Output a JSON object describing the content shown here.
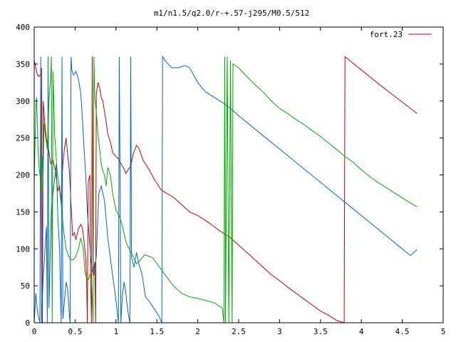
{
  "chart_data": {
    "type": "line",
    "title": "m1/n1.5/q2.0/r-+.57-j295/M0.5/512",
    "xlabel": "",
    "ylabel": "",
    "xlim": [
      0,
      5
    ],
    "ylim": [
      0,
      400
    ],
    "x_ticks": [
      0,
      0.5,
      1,
      1.5,
      2,
      2.5,
      3,
      3.5,
      4,
      4.5,
      5
    ],
    "x_tick_labels": [
      "0",
      "0.5",
      "1",
      "1.5",
      "2",
      "2.5",
      "3",
      "3.5",
      "4",
      "4.5",
      "5"
    ],
    "y_ticks": [
      0,
      50,
      100,
      150,
      200,
      250,
      300,
      350,
      400
    ],
    "y_tick_labels": [
      "0",
      "50",
      "100",
      "150",
      "200",
      "250",
      "300",
      "350",
      "400"
    ],
    "grid": false,
    "legend_position": "top-right",
    "legend": [
      {
        "label": "fort.23",
        "color": "#cc0000"
      }
    ],
    "series": [
      {
        "color": "#cc0000",
        "points": [
          [
            0.0,
            355
          ],
          [
            0.02,
            345
          ],
          [
            0.04,
            335
          ],
          [
            0.06,
            333
          ],
          [
            0.08,
            337
          ],
          [
            0.09,
            345
          ],
          [
            0.1,
            0
          ],
          [
            0.11,
            300
          ],
          [
            0.13,
            270
          ],
          [
            0.15,
            248
          ],
          [
            0.18,
            232
          ],
          [
            0.2,
            215
          ],
          [
            0.23,
            220
          ],
          [
            0.26,
            205
          ],
          [
            0.29,
            178
          ],
          [
            0.31,
            186
          ],
          [
            0.33,
            163
          ],
          [
            0.35,
            215
          ],
          [
            0.37,
            236
          ],
          [
            0.39,
            250
          ],
          [
            0.41,
            226
          ],
          [
            0.43,
            205
          ],
          [
            0.45,
            160
          ],
          [
            0.47,
            118
          ],
          [
            0.49,
            122
          ],
          [
            0.51,
            112
          ],
          [
            0.54,
            127
          ],
          [
            0.57,
            133
          ],
          [
            0.59,
            128
          ],
          [
            0.61,
            110
          ],
          [
            0.63,
            88
          ],
          [
            0.64,
            60
          ],
          [
            0.65,
            0
          ],
          [
            0.66,
            190
          ],
          [
            0.68,
            200
          ],
          [
            0.69,
            60
          ],
          [
            0.7,
            0
          ],
          [
            0.71,
            360
          ],
          [
            0.72,
            65
          ],
          [
            0.74,
            82
          ],
          [
            0.75,
            0
          ],
          [
            0.76,
            310
          ],
          [
            0.78,
            325
          ],
          [
            0.8,
            318
          ],
          [
            0.82,
            305
          ],
          [
            0.84,
            300
          ],
          [
            0.86,
            285
          ],
          [
            0.88,
            272
          ],
          [
            0.9,
            255
          ],
          [
            0.93,
            245
          ],
          [
            0.96,
            230
          ],
          [
            1.0,
            225
          ],
          [
            1.03,
            222
          ],
          [
            1.06,
            215
          ],
          [
            1.09,
            210
          ],
          [
            1.12,
            202
          ],
          [
            1.15,
            207
          ],
          [
            1.18,
            212
          ],
          [
            1.21,
            228
          ],
          [
            1.25,
            240
          ],
          [
            1.28,
            236
          ],
          [
            1.33,
            220
          ],
          [
            1.4,
            208
          ],
          [
            1.48,
            192
          ],
          [
            1.55,
            180
          ],
          [
            1.62,
            175
          ],
          [
            1.7,
            170
          ],
          [
            1.8,
            160
          ],
          [
            1.9,
            150
          ],
          [
            2.0,
            145
          ],
          [
            2.1,
            138
          ],
          [
            2.2,
            130
          ],
          [
            2.3,
            122
          ],
          [
            2.4,
            115
          ],
          [
            2.5,
            105
          ],
          [
            2.6,
            95
          ],
          [
            2.7,
            85
          ],
          [
            2.8,
            75
          ],
          [
            2.9,
            65
          ],
          [
            3.0,
            57
          ],
          [
            3.1,
            48
          ],
          [
            3.2,
            40
          ],
          [
            3.3,
            32
          ],
          [
            3.4,
            24
          ],
          [
            3.5,
            16
          ],
          [
            3.6,
            10
          ],
          [
            3.7,
            3
          ],
          [
            3.79,
            0
          ],
          [
            3.8,
            360
          ],
          [
            4.0,
            342
          ],
          [
            4.2,
            324
          ],
          [
            4.4,
            307
          ],
          [
            4.6,
            290
          ],
          [
            4.68,
            283
          ]
        ]
      },
      {
        "color": "#0066cc",
        "points": [
          [
            0.0,
            0
          ],
          [
            0.02,
            40
          ],
          [
            0.04,
            15
          ],
          [
            0.06,
            5
          ],
          [
            0.07,
            0
          ],
          [
            0.08,
            360
          ],
          [
            0.09,
            0
          ],
          [
            0.11,
            60
          ],
          [
            0.13,
            95
          ],
          [
            0.15,
            130
          ],
          [
            0.16,
            0
          ],
          [
            0.17,
            360
          ],
          [
            0.18,
            20
          ],
          [
            0.21,
            155
          ],
          [
            0.24,
            185
          ],
          [
            0.27,
            215
          ],
          [
            0.29,
            140
          ],
          [
            0.31,
            100
          ],
          [
            0.33,
            0
          ],
          [
            0.34,
            360
          ],
          [
            0.35,
            5
          ],
          [
            0.37,
            30
          ],
          [
            0.39,
            55
          ],
          [
            0.41,
            45
          ],
          [
            0.43,
            10
          ],
          [
            0.44,
            0
          ],
          [
            0.45,
            360
          ],
          [
            0.46,
            342
          ],
          [
            0.48,
            335
          ],
          [
            0.51,
            340
          ],
          [
            0.54,
            330
          ],
          [
            0.57,
            310
          ],
          [
            0.59,
            275
          ],
          [
            0.61,
            235
          ],
          [
            0.63,
            200
          ],
          [
            0.65,
            150
          ],
          [
            0.67,
            120
          ],
          [
            0.69,
            90
          ],
          [
            0.71,
            70
          ],
          [
            0.73,
            65
          ],
          [
            0.76,
            90
          ],
          [
            0.79,
            175
          ],
          [
            0.82,
            185
          ],
          [
            0.86,
            165
          ],
          [
            0.9,
            115
          ],
          [
            0.94,
            80
          ],
          [
            0.97,
            55
          ],
          [
            1.0,
            30
          ],
          [
            1.02,
            10
          ],
          [
            1.03,
            0
          ],
          [
            1.04,
            360
          ],
          [
            1.06,
            0
          ],
          [
            1.08,
            40
          ],
          [
            1.1,
            55
          ],
          [
            1.12,
            40
          ],
          [
            1.14,
            20
          ],
          [
            1.16,
            5
          ],
          [
            1.17,
            0
          ],
          [
            1.18,
            360
          ],
          [
            1.19,
            88
          ],
          [
            1.22,
            75
          ],
          [
            1.25,
            95
          ],
          [
            1.28,
            80
          ],
          [
            1.32,
            65
          ],
          [
            1.36,
            35
          ],
          [
            1.4,
            30
          ],
          [
            1.46,
            20
          ],
          [
            1.52,
            10
          ],
          [
            1.56,
            0
          ],
          [
            1.57,
            360
          ],
          [
            1.62,
            352
          ],
          [
            1.68,
            345
          ],
          [
            1.76,
            345
          ],
          [
            1.84,
            348
          ],
          [
            1.9,
            345
          ],
          [
            1.95,
            335
          ],
          [
            2.0,
            325
          ],
          [
            2.05,
            318
          ],
          [
            2.1,
            312
          ],
          [
            2.2,
            305
          ],
          [
            2.3,
            298
          ],
          [
            2.4,
            290
          ],
          [
            2.5,
            280
          ],
          [
            2.7,
            262
          ],
          [
            2.9,
            244
          ],
          [
            3.1,
            226
          ],
          [
            3.3,
            208
          ],
          [
            3.5,
            190
          ],
          [
            3.7,
            172
          ],
          [
            3.9,
            154
          ],
          [
            4.1,
            136
          ],
          [
            4.3,
            118
          ],
          [
            4.5,
            100
          ],
          [
            4.6,
            91
          ],
          [
            4.68,
            99
          ]
        ]
      },
      {
        "color": "#00aa00",
        "points": [
          [
            0.0,
            190
          ],
          [
            0.02,
            290
          ],
          [
            0.03,
            305
          ],
          [
            0.04,
            260
          ],
          [
            0.05,
            230
          ],
          [
            0.06,
            210
          ],
          [
            0.07,
            200
          ],
          [
            0.08,
            190
          ],
          [
            0.09,
            175
          ],
          [
            0.1,
            225
          ],
          [
            0.11,
            200
          ],
          [
            0.12,
            270
          ],
          [
            0.14,
            250
          ],
          [
            0.16,
            235
          ],
          [
            0.18,
            300
          ],
          [
            0.2,
            330
          ],
          [
            0.21,
            360
          ],
          [
            0.22,
            0
          ],
          [
            0.23,
            340
          ],
          [
            0.25,
            255
          ],
          [
            0.28,
            205
          ],
          [
            0.3,
            190
          ],
          [
            0.33,
            160
          ],
          [
            0.36,
            125
          ],
          [
            0.39,
            100
          ],
          [
            0.42,
            90
          ],
          [
            0.45,
            85
          ],
          [
            0.48,
            85
          ],
          [
            0.51,
            90
          ],
          [
            0.54,
            100
          ],
          [
            0.57,
            115
          ],
          [
            0.6,
            100
          ],
          [
            0.62,
            70
          ],
          [
            0.64,
            60
          ],
          [
            0.66,
            58
          ],
          [
            0.68,
            65
          ],
          [
            0.7,
            60
          ],
          [
            0.72,
            0
          ],
          [
            0.73,
            360
          ],
          [
            0.74,
            305
          ],
          [
            0.76,
            285
          ],
          [
            0.78,
            255
          ],
          [
            0.8,
            235
          ],
          [
            0.82,
            215
          ],
          [
            0.84,
            205
          ],
          [
            0.86,
            200
          ],
          [
            0.88,
            185
          ],
          [
            0.9,
            210
          ],
          [
            0.93,
            200
          ],
          [
            0.96,
            175
          ],
          [
            1.0,
            152
          ],
          [
            1.04,
            145
          ],
          [
            1.08,
            130
          ],
          [
            1.12,
            110
          ],
          [
            1.16,
            100
          ],
          [
            1.2,
            92
          ],
          [
            1.25,
            80
          ],
          [
            1.3,
            85
          ],
          [
            1.35,
            92
          ],
          [
            1.4,
            90
          ],
          [
            1.45,
            88
          ],
          [
            1.5,
            80
          ],
          [
            1.6,
            65
          ],
          [
            1.7,
            50
          ],
          [
            1.8,
            40
          ],
          [
            1.9,
            35
          ],
          [
            2.0,
            33
          ],
          [
            2.1,
            30
          ],
          [
            2.2,
            27
          ],
          [
            2.3,
            20
          ],
          [
            2.32,
            0
          ],
          [
            2.33,
            360
          ],
          [
            2.34,
            0
          ],
          [
            2.36,
            360
          ],
          [
            2.38,
            0
          ],
          [
            2.4,
            355
          ],
          [
            2.42,
            0
          ],
          [
            2.43,
            350
          ],
          [
            2.5,
            345
          ],
          [
            2.6,
            333
          ],
          [
            2.7,
            322
          ],
          [
            2.8,
            312
          ],
          [
            2.9,
            300
          ],
          [
            3.0,
            290
          ],
          [
            3.1,
            283
          ],
          [
            3.2,
            275
          ],
          [
            3.3,
            268
          ],
          [
            3.4,
            260
          ],
          [
            3.5,
            252
          ],
          [
            3.6,
            243
          ],
          [
            3.7,
            234
          ],
          [
            3.8,
            225
          ],
          [
            3.9,
            217
          ],
          [
            4.0,
            207
          ],
          [
            4.1,
            198
          ],
          [
            4.2,
            190
          ],
          [
            4.3,
            183
          ],
          [
            4.4,
            176
          ],
          [
            4.5,
            169
          ],
          [
            4.6,
            162
          ],
          [
            4.68,
            157
          ]
        ]
      }
    ]
  }
}
